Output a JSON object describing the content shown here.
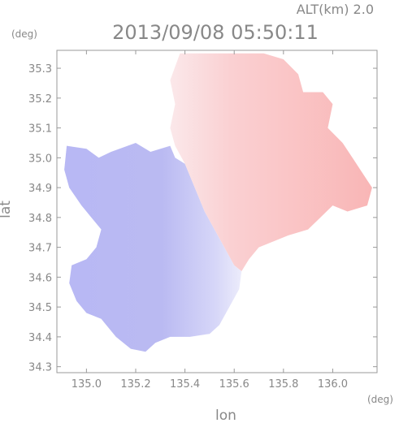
{
  "chart_data": {
    "type": "heatmap",
    "title": "2013/09/08 05:50:11",
    "altitude_label": "ALT(km) 2.0",
    "xlabel": "lon",
    "ylabel": "lat",
    "x_unit": "(deg)",
    "y_unit": "(deg)",
    "xlim": [
      134.88,
      136.18
    ],
    "ylim": [
      34.28,
      35.36
    ],
    "x_ticks": [
      "135.0",
      "135.2",
      "135.4",
      "135.6",
      "135.8",
      "136.0"
    ],
    "x_tick_values": [
      135.0,
      135.2,
      135.4,
      135.6,
      135.8,
      136.0
    ],
    "y_ticks": [
      "34.3",
      "34.4",
      "34.5",
      "34.6",
      "34.7",
      "34.8",
      "34.9",
      "35.0",
      "35.1",
      "35.2",
      "35.3"
    ],
    "y_tick_values": [
      34.3,
      34.4,
      34.5,
      34.6,
      34.7,
      34.8,
      34.9,
      35.0,
      35.1,
      35.2,
      35.3
    ],
    "grid": false,
    "colors": {
      "negative": "#b4b4f5",
      "positive": "#f9b6b6",
      "zero": "#f2f2fa"
    },
    "regions": {
      "positive": [
        [
          135.38,
          35.35
        ],
        [
          135.72,
          35.35
        ],
        [
          135.8,
          35.33
        ],
        [
          135.86,
          35.28
        ],
        [
          135.88,
          35.22
        ],
        [
          135.96,
          35.22
        ],
        [
          136.0,
          35.18
        ],
        [
          135.98,
          35.1
        ],
        [
          136.04,
          35.05
        ],
        [
          136.08,
          35.0
        ],
        [
          136.12,
          34.95
        ],
        [
          136.16,
          34.9
        ],
        [
          136.14,
          34.84
        ],
        [
          136.06,
          34.82
        ],
        [
          136.0,
          34.84
        ],
        [
          135.95,
          34.8
        ],
        [
          135.9,
          34.76
        ],
        [
          135.82,
          34.74
        ],
        [
          135.76,
          34.72
        ],
        [
          135.7,
          34.7
        ],
        [
          135.66,
          34.66
        ],
        [
          135.63,
          34.62
        ],
        [
          135.6,
          34.64
        ],
        [
          135.56,
          34.7
        ],
        [
          135.52,
          34.76
        ],
        [
          135.48,
          34.82
        ],
        [
          135.44,
          34.9
        ],
        [
          135.4,
          34.98
        ],
        [
          135.36,
          35.04
        ],
        [
          135.34,
          35.1
        ],
        [
          135.36,
          35.18
        ],
        [
          135.34,
          35.26
        ]
      ],
      "negative": [
        [
          134.92,
          35.04
        ],
        [
          135.0,
          35.03
        ],
        [
          135.05,
          35.0
        ],
        [
          135.1,
          35.02
        ],
        [
          135.2,
          35.05
        ],
        [
          135.26,
          35.02
        ],
        [
          135.34,
          35.04
        ],
        [
          135.36,
          35.0
        ],
        [
          135.4,
          34.98
        ],
        [
          135.44,
          34.9
        ],
        [
          135.48,
          34.82
        ],
        [
          135.52,
          34.76
        ],
        [
          135.56,
          34.7
        ],
        [
          135.6,
          34.64
        ],
        [
          135.63,
          34.62
        ],
        [
          135.62,
          34.56
        ],
        [
          135.58,
          34.5
        ],
        [
          135.54,
          34.44
        ],
        [
          135.5,
          34.41
        ],
        [
          135.42,
          34.4
        ],
        [
          135.34,
          34.4
        ],
        [
          135.28,
          34.38
        ],
        [
          135.24,
          34.35
        ],
        [
          135.18,
          34.36
        ],
        [
          135.12,
          34.4
        ],
        [
          135.06,
          34.46
        ],
        [
          135.0,
          34.48
        ],
        [
          134.96,
          34.52
        ],
        [
          134.93,
          34.58
        ],
        [
          134.94,
          34.64
        ],
        [
          135.0,
          34.66
        ],
        [
          135.04,
          34.7
        ],
        [
          135.06,
          34.76
        ],
        [
          135.02,
          34.8
        ],
        [
          134.98,
          34.84
        ],
        [
          134.93,
          34.9
        ],
        [
          134.91,
          34.96
        ]
      ]
    }
  }
}
